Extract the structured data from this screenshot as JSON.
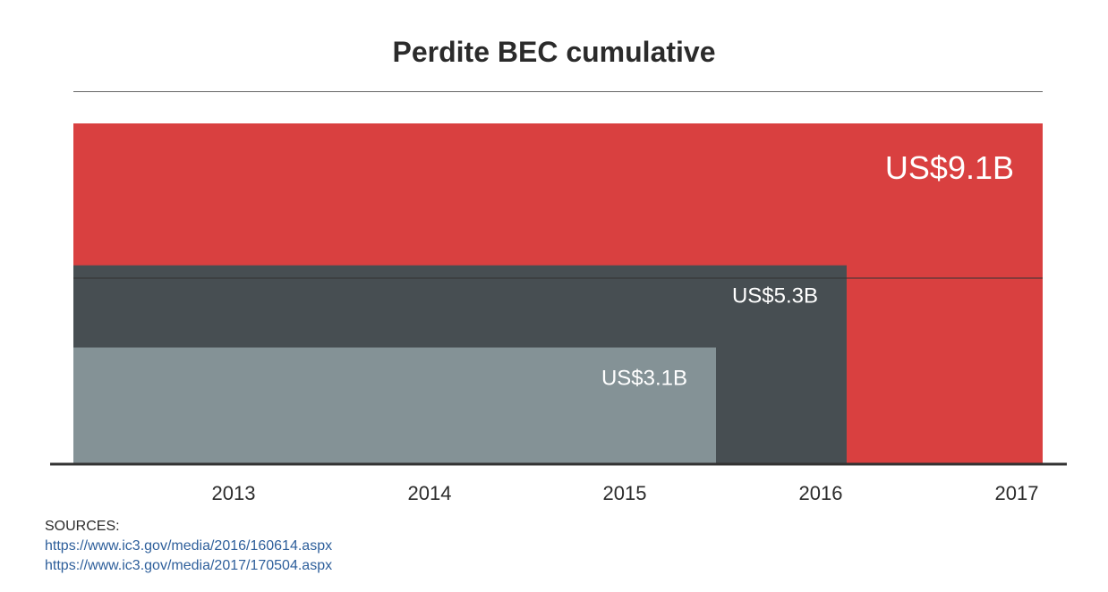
{
  "chart_data": {
    "type": "area",
    "title": "Perdite BEC cumulative",
    "xlabel": "",
    "ylabel": "",
    "categories": [
      "2013",
      "2014",
      "2015",
      "2016",
      "2017"
    ],
    "series": [
      {
        "label": "US$9.1B",
        "value": 9.1,
        "x_end": "2017",
        "color": "#d94040"
      },
      {
        "label": "US$5.3B",
        "value": 5.3,
        "x_end": "2016",
        "color": "#474e52"
      },
      {
        "label": "US$3.1B",
        "value": 3.1,
        "x_end": "2015",
        "color": "#849296"
      }
    ],
    "grid": false
  },
  "sources": {
    "label": "SOURCES:",
    "links": [
      "https://www.ic3.gov/media/2016/160614.aspx",
      "https://www.ic3.gov/media/2017/170504.aspx"
    ]
  }
}
